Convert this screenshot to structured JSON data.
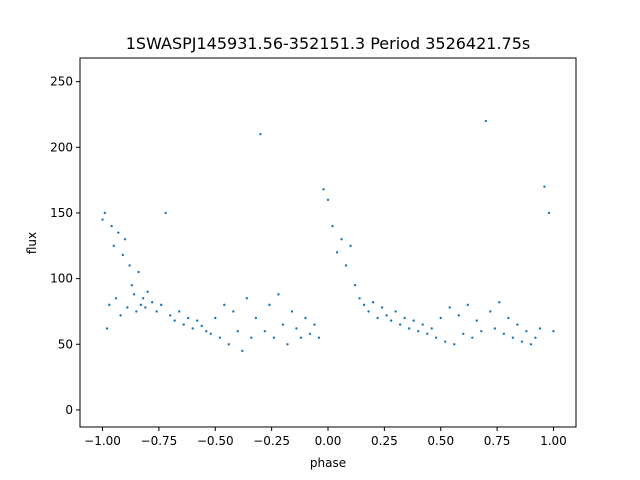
{
  "chart_data": {
    "type": "scatter",
    "title": "1SWASPJ145931.56-352151.3 Period 3526421.75s",
    "xlabel": "phase",
    "ylabel": "flux",
    "xlim": [
      -1.1,
      1.1
    ],
    "ylim": [
      -13,
      268
    ],
    "xticks": [
      -1.0,
      -0.75,
      -0.5,
      -0.25,
      0.0,
      0.25,
      0.5,
      0.75,
      1.0
    ],
    "xtick_labels": [
      "−1.00",
      "−0.75",
      "−0.50",
      "−0.25",
      "0.00",
      "0.25",
      "0.50",
      "0.75",
      "1.00"
    ],
    "yticks": [
      0,
      50,
      100,
      150,
      200,
      250
    ],
    "ytick_labels": [
      "0",
      "50",
      "100",
      "150",
      "200",
      "250"
    ],
    "grid": false,
    "point_color": "#1f77b4",
    "series": [
      {
        "values": [
          [
            -1.0,
            145
          ],
          [
            -0.99,
            150
          ],
          [
            -0.98,
            62
          ],
          [
            -0.97,
            80
          ],
          [
            -0.96,
            140
          ],
          [
            -0.95,
            125
          ],
          [
            -0.94,
            85
          ],
          [
            -0.93,
            135
          ],
          [
            -0.92,
            72
          ],
          [
            -0.91,
            118
          ],
          [
            -0.9,
            130
          ],
          [
            -0.89,
            78
          ],
          [
            -0.88,
            110
          ],
          [
            -0.87,
            95
          ],
          [
            -0.86,
            88
          ],
          [
            -0.85,
            75
          ],
          [
            -0.84,
            105
          ],
          [
            -0.83,
            80
          ],
          [
            -0.82,
            85
          ],
          [
            -0.81,
            78
          ],
          [
            -0.8,
            90
          ],
          [
            -0.78,
            82
          ],
          [
            -0.76,
            75
          ],
          [
            -0.74,
            80
          ],
          [
            -0.72,
            150
          ],
          [
            -0.7,
            72
          ],
          [
            -0.68,
            68
          ],
          [
            -0.66,
            75
          ],
          [
            -0.64,
            65
          ],
          [
            -0.62,
            70
          ],
          [
            -0.6,
            62
          ],
          [
            -0.58,
            68
          ],
          [
            -0.56,
            64
          ],
          [
            -0.54,
            60
          ],
          [
            -0.52,
            58
          ],
          [
            -0.5,
            70
          ],
          [
            -0.48,
            55
          ],
          [
            -0.46,
            80
          ],
          [
            -0.44,
            50
          ],
          [
            -0.42,
            75
          ],
          [
            -0.4,
            60
          ],
          [
            -0.38,
            45
          ],
          [
            -0.36,
            85
          ],
          [
            -0.34,
            55
          ],
          [
            -0.32,
            70
          ],
          [
            -0.3,
            210
          ],
          [
            -0.28,
            60
          ],
          [
            -0.26,
            80
          ],
          [
            -0.24,
            55
          ],
          [
            -0.22,
            88
          ],
          [
            -0.2,
            65
          ],
          [
            -0.18,
            50
          ],
          [
            -0.16,
            75
          ],
          [
            -0.14,
            62
          ],
          [
            -0.12,
            55
          ],
          [
            -0.1,
            70
          ],
          [
            -0.08,
            58
          ],
          [
            -0.06,
            65
          ],
          [
            -0.04,
            55
          ],
          [
            -0.02,
            168
          ],
          [
            0.0,
            160
          ],
          [
            0.02,
            140
          ],
          [
            0.04,
            120
          ],
          [
            0.06,
            130
          ],
          [
            0.08,
            110
          ],
          [
            0.1,
            125
          ],
          [
            0.12,
            95
          ],
          [
            0.14,
            85
          ],
          [
            0.16,
            80
          ],
          [
            0.18,
            75
          ],
          [
            0.2,
            82
          ],
          [
            0.22,
            70
          ],
          [
            0.24,
            78
          ],
          [
            0.26,
            72
          ],
          [
            0.28,
            68
          ],
          [
            0.3,
            75
          ],
          [
            0.32,
            65
          ],
          [
            0.34,
            70
          ],
          [
            0.36,
            62
          ],
          [
            0.38,
            68
          ],
          [
            0.4,
            60
          ],
          [
            0.42,
            65
          ],
          [
            0.44,
            58
          ],
          [
            0.46,
            62
          ],
          [
            0.48,
            55
          ],
          [
            0.5,
            70
          ],
          [
            0.52,
            52
          ],
          [
            0.54,
            78
          ],
          [
            0.56,
            50
          ],
          [
            0.58,
            72
          ],
          [
            0.6,
            58
          ],
          [
            0.62,
            80
          ],
          [
            0.64,
            55
          ],
          [
            0.66,
            68
          ],
          [
            0.68,
            60
          ],
          [
            0.7,
            220
          ],
          [
            0.72,
            75
          ],
          [
            0.74,
            62
          ],
          [
            0.76,
            82
          ],
          [
            0.78,
            58
          ],
          [
            0.8,
            70
          ],
          [
            0.82,
            55
          ],
          [
            0.84,
            65
          ],
          [
            0.86,
            52
          ],
          [
            0.88,
            60
          ],
          [
            0.9,
            50
          ],
          [
            0.92,
            55
          ],
          [
            0.94,
            62
          ],
          [
            0.96,
            170
          ],
          [
            0.98,
            150
          ],
          [
            1.0,
            60
          ]
        ]
      }
    ]
  }
}
